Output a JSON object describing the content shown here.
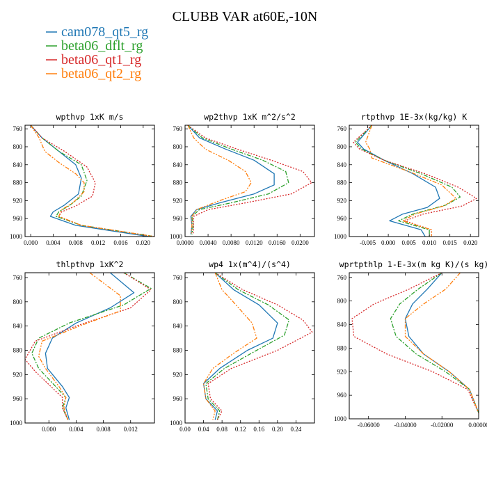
{
  "title": "CLUBB VAR at60E,-10N",
  "legend": [
    {
      "label": "cam078_qt5_rg",
      "color": "#1f77b4",
      "dash": "solid"
    },
    {
      "label": "beta06_dflt_rg",
      "color": "#2ca02c",
      "dash": "dashdot"
    },
    {
      "label": "beta06_qt1_rg",
      "color": "#d62728",
      "dash": "dotted"
    },
    {
      "label": "beta06_qt2_rg",
      "color": "#ff7f0e",
      "dash": "dashdotdot"
    }
  ],
  "chart_data": [
    {
      "type": "line",
      "title": "wpthvp  1xK m/s",
      "xlim": [
        -0.001,
        0.022
      ],
      "ylim": [
        1000,
        752
      ],
      "y_inverted": true,
      "xticks": [
        0.0,
        0.004,
        0.008,
        0.012,
        0.016,
        0.02
      ],
      "xtick_labels": [
        "0.000",
        "0.004",
        "0.008",
        "0.012",
        "0.016",
        "0.020"
      ],
      "yticks": [
        760,
        800,
        840,
        880,
        920,
        960,
        1000
      ],
      "series": [
        {
          "name": "cam078_qt5_rg",
          "x": [
            0.0,
            0.002,
            0.005,
            0.008,
            0.009,
            0.0085,
            0.006,
            0.004,
            0.0035,
            0.008,
            0.021
          ],
          "y": [
            752,
            780,
            810,
            840,
            870,
            905,
            930,
            945,
            955,
            975,
            1000
          ]
        },
        {
          "name": "beta06_dflt_rg",
          "x": [
            0.0,
            0.002,
            0.005,
            0.009,
            0.01,
            0.009,
            0.007,
            0.005,
            0.0045,
            0.009,
            0.022
          ],
          "y": [
            752,
            780,
            810,
            840,
            875,
            910,
            930,
            945,
            955,
            975,
            1000
          ]
        },
        {
          "name": "beta06_qt1_rg",
          "x": [
            0.0,
            0.002,
            0.006,
            0.01,
            0.0115,
            0.011,
            0.008,
            0.0055,
            0.005,
            0.009,
            0.022
          ],
          "y": [
            752,
            780,
            810,
            845,
            880,
            910,
            932,
            945,
            955,
            975,
            1000
          ]
        },
        {
          "name": "beta06_qt2_rg",
          "x": [
            0.0,
            0.0015,
            0.0025,
            0.005,
            0.008,
            0.0095,
            0.0095,
            0.0075,
            0.0055,
            0.005,
            0.009,
            0.022
          ],
          "y": [
            752,
            780,
            810,
            835,
            860,
            880,
            900,
            925,
            940,
            955,
            975,
            1000
          ]
        }
      ]
    },
    {
      "type": "line",
      "title": "wp2thvp  1xK m^2/s^2",
      "xlim": [
        0.0,
        0.0225
      ],
      "ylim": [
        1000,
        752
      ],
      "y_inverted": true,
      "xticks": [
        0.0,
        0.004,
        0.008,
        0.012,
        0.016,
        0.02
      ],
      "xtick_labels": [
        "0.0000",
        "0.0040",
        "0.0080",
        "0.0120",
        "0.0160",
        "0.0200"
      ],
      "yticks": [
        760,
        800,
        840,
        880,
        920,
        960,
        1000
      ],
      "series": [
        {
          "name": "cam078_qt5_rg",
          "x": [
            0.0005,
            0.0025,
            0.007,
            0.012,
            0.0155,
            0.0155,
            0.012,
            0.006,
            0.002,
            0.001,
            0.0012,
            0.001
          ],
          "y": [
            752,
            780,
            805,
            830,
            860,
            885,
            905,
            925,
            940,
            955,
            975,
            995
          ]
        },
        {
          "name": "beta06_dflt_rg",
          "x": [
            0.0005,
            0.003,
            0.008,
            0.0135,
            0.0175,
            0.018,
            0.0145,
            0.008,
            0.0025,
            0.0012,
            0.0014,
            0.0012
          ],
          "y": [
            752,
            780,
            805,
            830,
            855,
            880,
            905,
            925,
            940,
            955,
            975,
            995
          ]
        },
        {
          "name": "beta06_qt1_rg",
          "x": [
            0.0005,
            0.0035,
            0.009,
            0.015,
            0.0205,
            0.022,
            0.0185,
            0.0105,
            0.004,
            0.0015,
            0.0015,
            0.0014
          ],
          "y": [
            752,
            780,
            805,
            830,
            855,
            880,
            905,
            925,
            940,
            955,
            975,
            995
          ]
        },
        {
          "name": "beta06_qt2_rg",
          "x": [
            0.0005,
            0.0015,
            0.0035,
            0.0075,
            0.0105,
            0.0115,
            0.0105,
            0.006,
            0.002,
            0.0012,
            0.0012,
            0.0011
          ],
          "y": [
            752,
            780,
            805,
            830,
            855,
            880,
            900,
            920,
            940,
            955,
            975,
            995
          ]
        }
      ]
    },
    {
      "type": "line",
      "title": "rtpthvp  1E-3x(kg/kg) K",
      "xlim": [
        -0.0095,
        0.022
      ],
      "ylim": [
        1000,
        752
      ],
      "y_inverted": true,
      "xticks": [
        -0.005,
        0.0,
        0.005,
        0.01,
        0.015,
        0.02
      ],
      "xtick_labels": [
        "-0.005",
        "0.000",
        "0.005",
        "0.010",
        "0.015",
        "0.020"
      ],
      "yticks": [
        760,
        800,
        840,
        880,
        920,
        960,
        1000
      ],
      "series": [
        {
          "name": "cam078_qt5_rg",
          "x": [
            -0.004,
            -0.0075,
            -0.006,
            -0.001,
            0.006,
            0.0115,
            0.0125,
            0.0095,
            0.0035,
            0.0003,
            0.008,
            0.009
          ],
          "y": [
            752,
            790,
            805,
            830,
            860,
            890,
            915,
            935,
            950,
            965,
            985,
            1000
          ]
        },
        {
          "name": "beta06_dflt_rg",
          "x": [
            -0.004,
            -0.008,
            -0.0065,
            -0.001,
            0.008,
            0.0155,
            0.0175,
            0.014,
            0.006,
            0.0025,
            0.01,
            0.01
          ],
          "y": [
            752,
            790,
            805,
            830,
            860,
            890,
            912,
            930,
            950,
            965,
            985,
            1000
          ]
        },
        {
          "name": "beta06_qt1_rg",
          "x": [
            -0.004,
            -0.0085,
            -0.007,
            -0.001,
            0.009,
            0.017,
            0.0215,
            0.018,
            0.0085,
            0.004,
            0.0105,
            0.0105
          ],
          "y": [
            752,
            790,
            805,
            830,
            860,
            890,
            915,
            932,
            950,
            965,
            985,
            1000
          ]
        },
        {
          "name": "beta06_qt2_rg",
          "x": [
            -0.004,
            -0.0055,
            -0.0045,
            -0.004,
            0.005,
            0.013,
            0.0165,
            0.0135,
            0.0065,
            0.0035,
            0.0105,
            0.0105
          ],
          "y": [
            752,
            790,
            805,
            825,
            855,
            885,
            915,
            932,
            950,
            965,
            985,
            1000
          ]
        }
      ]
    },
    {
      "type": "line",
      "title": "thlpthvp  1xK^2",
      "xlim": [
        -0.0035,
        0.0155
      ],
      "ylim": [
        1000,
        752
      ],
      "y_inverted": true,
      "xticks": [
        0.0,
        0.004,
        0.008,
        0.012
      ],
      "xtick_labels": [
        "0.000",
        "0.004",
        "0.008",
        "0.012"
      ],
      "yticks": [
        760,
        800,
        840,
        880,
        920,
        960,
        1000
      ],
      "series": [
        {
          "name": "cam078_qt5_rg",
          "x": [
            0.009,
            0.0125,
            0.009,
            0.004,
            0.0005,
            -0.0005,
            -0.0002,
            0.002,
            0.003,
            0.0025,
            0.003
          ],
          "y": [
            752,
            785,
            810,
            835,
            860,
            885,
            910,
            940,
            958,
            975,
            995
          ]
        },
        {
          "name": "beta06_dflt_rg",
          "x": [
            0.011,
            0.015,
            0.011,
            0.003,
            -0.0015,
            -0.0025,
            -0.0015,
            0.001,
            0.0025,
            0.002,
            0.0028
          ],
          "y": [
            752,
            778,
            805,
            835,
            860,
            885,
            910,
            940,
            958,
            975,
            995
          ]
        },
        {
          "name": "beta06_qt1_rg",
          "x": [
            0.011,
            0.015,
            0.012,
            0.004,
            -0.002,
            -0.0035,
            -0.002,
            0.0005,
            0.002,
            0.002,
            0.0028
          ],
          "y": [
            752,
            780,
            810,
            840,
            865,
            895,
            915,
            942,
            958,
            975,
            995
          ]
        },
        {
          "name": "beta06_qt2_rg",
          "x": [
            0.006,
            0.0105,
            0.0105,
            0.0045,
            -0.001,
            -0.0015,
            -0.0005,
            0.0015,
            0.0025,
            0.0022,
            0.0028
          ],
          "y": [
            752,
            790,
            815,
            840,
            865,
            890,
            910,
            940,
            958,
            975,
            995
          ]
        }
      ]
    },
    {
      "type": "line",
      "title": "wp4  1x(m^4)/(s^4)",
      "xlim": [
        0.0,
        0.28
      ],
      "ylim": [
        1000,
        752
      ],
      "y_inverted": true,
      "xticks": [
        0.0,
        0.04,
        0.08,
        0.12,
        0.16,
        0.2,
        0.24
      ],
      "xtick_labels": [
        "0.00",
        "0.04",
        "0.08",
        "0.12",
        "0.16",
        "0.20",
        "0.24"
      ],
      "yticks": [
        760,
        800,
        840,
        880,
        920,
        960,
        1000
      ],
      "series": [
        {
          "name": "cam078_qt5_rg",
          "x": [
            0.065,
            0.105,
            0.16,
            0.2,
            0.19,
            0.135,
            0.075,
            0.04,
            0.045,
            0.07,
            0.065
          ],
          "y": [
            752,
            780,
            805,
            835,
            860,
            880,
            910,
            935,
            960,
            980,
            995
          ]
        },
        {
          "name": "beta06_dflt_rg",
          "x": [
            0.065,
            0.115,
            0.18,
            0.225,
            0.215,
            0.155,
            0.085,
            0.045,
            0.05,
            0.075,
            0.07
          ],
          "y": [
            752,
            780,
            805,
            830,
            855,
            880,
            910,
            935,
            960,
            980,
            995
          ]
        },
        {
          "name": "beta06_qt1_rg",
          "x": [
            0.065,
            0.125,
            0.2,
            0.255,
            0.275,
            0.2,
            0.1,
            0.05,
            0.055,
            0.08,
            0.07
          ],
          "y": [
            752,
            780,
            805,
            830,
            850,
            880,
            910,
            935,
            960,
            980,
            995
          ]
        },
        {
          "name": "beta06_qt2_rg",
          "x": [
            0.065,
            0.08,
            0.11,
            0.145,
            0.155,
            0.105,
            0.06,
            0.04,
            0.045,
            0.065,
            0.06
          ],
          "y": [
            752,
            780,
            805,
            835,
            860,
            885,
            910,
            935,
            960,
            980,
            995
          ]
        }
      ]
    },
    {
      "type": "line",
      "title": "wprtpthlp  1-E-3x(m kg K)/(s kg)",
      "xlim": [
        -0.0705,
        0.0
      ],
      "ylim": [
        1000,
        752
      ],
      "y_inverted": true,
      "xticks": [
        -0.06,
        -0.04,
        -0.02,
        0.0
      ],
      "xtick_labels": [
        "-0.06000",
        "-0.04000",
        "-0.02000",
        "0.00000"
      ],
      "yticks": [
        760,
        800,
        840,
        880,
        920,
        960,
        1000
      ],
      "series": [
        {
          "name": "cam078_qt5_rg",
          "x": [
            -0.02,
            -0.028,
            -0.036,
            -0.04,
            -0.038,
            -0.03,
            -0.016,
            -0.005,
            0.0
          ],
          "y": [
            752,
            780,
            805,
            830,
            860,
            890,
            920,
            950,
            990
          ]
        },
        {
          "name": "beta06_dflt_rg",
          "x": [
            -0.02,
            -0.033,
            -0.043,
            -0.048,
            -0.045,
            -0.034,
            -0.018,
            -0.005,
            0.0
          ],
          "y": [
            752,
            780,
            805,
            830,
            860,
            890,
            920,
            950,
            990
          ]
        },
        {
          "name": "beta06_qt1_rg",
          "x": [
            -0.02,
            -0.038,
            -0.057,
            -0.069,
            -0.068,
            -0.05,
            -0.025,
            -0.006,
            0.0
          ],
          "y": [
            752,
            780,
            805,
            830,
            860,
            890,
            920,
            950,
            990
          ]
        },
        {
          "name": "beta06_qt2_rg",
          "x": [
            -0.01,
            -0.018,
            -0.03,
            -0.04,
            -0.04,
            -0.03,
            -0.016,
            -0.005,
            0.0
          ],
          "y": [
            752,
            780,
            805,
            830,
            860,
            890,
            920,
            950,
            990
          ]
        }
      ]
    }
  ]
}
